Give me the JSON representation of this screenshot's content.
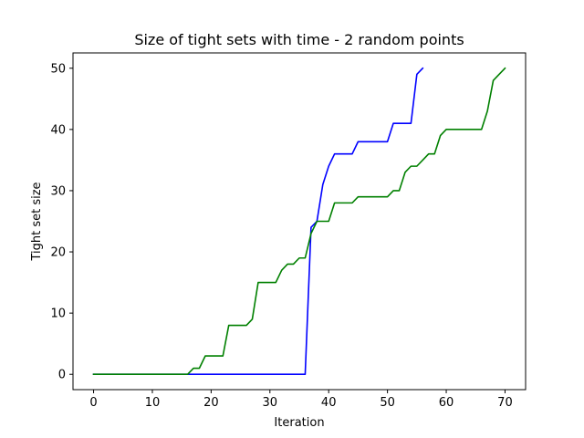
{
  "chart_data": {
    "type": "line",
    "title": "Size of tight sets with time - 2 random points",
    "xlabel": "Iteration",
    "ylabel": "Tight set size",
    "xlim": [
      -3.5,
      73.5
    ],
    "ylim": [
      -2.5,
      52.5
    ],
    "xticks": [
      0,
      10,
      20,
      30,
      40,
      50,
      60,
      70
    ],
    "yticks": [
      0,
      10,
      20,
      30,
      40,
      50
    ],
    "grid": false,
    "legend": "none",
    "series": [
      {
        "color": "#0000ff",
        "x": [
          0,
          1,
          2,
          3,
          4,
          5,
          6,
          7,
          8,
          9,
          10,
          11,
          12,
          13,
          14,
          15,
          16,
          17,
          18,
          19,
          20,
          21,
          22,
          23,
          24,
          25,
          26,
          27,
          28,
          29,
          30,
          31,
          32,
          33,
          34,
          35,
          36,
          37,
          38,
          39,
          40,
          41,
          42,
          43,
          44,
          45,
          46,
          47,
          48,
          49,
          50,
          51,
          52,
          53,
          54,
          55,
          56
        ],
        "y": [
          0,
          0,
          0,
          0,
          0,
          0,
          0,
          0,
          0,
          0,
          0,
          0,
          0,
          0,
          0,
          0,
          0,
          0,
          0,
          0,
          0,
          0,
          0,
          0,
          0,
          0,
          0,
          0,
          0,
          0,
          0,
          0,
          0,
          0,
          0,
          0,
          0,
          24,
          25,
          31,
          34,
          36,
          36,
          36,
          36,
          38,
          38,
          38,
          38,
          38,
          38,
          41,
          41,
          41,
          41,
          49,
          50
        ]
      },
      {
        "color": "#008000",
        "x": [
          0,
          1,
          2,
          3,
          4,
          5,
          6,
          7,
          8,
          9,
          10,
          11,
          12,
          13,
          14,
          15,
          16,
          17,
          18,
          19,
          20,
          21,
          22,
          23,
          24,
          25,
          26,
          27,
          28,
          29,
          30,
          31,
          32,
          33,
          34,
          35,
          36,
          37,
          38,
          39,
          40,
          41,
          42,
          43,
          44,
          45,
          46,
          47,
          48,
          49,
          50,
          51,
          52,
          53,
          54,
          55,
          56,
          57,
          58,
          59,
          60,
          61,
          62,
          63,
          64,
          65,
          66,
          67,
          68,
          69,
          70
        ],
        "y": [
          0,
          0,
          0,
          0,
          0,
          0,
          0,
          0,
          0,
          0,
          0,
          0,
          0,
          0,
          0,
          0,
          0,
          1,
          1,
          3,
          3,
          3,
          3,
          8,
          8,
          8,
          8,
          9,
          15,
          15,
          15,
          15,
          17,
          18,
          18,
          19,
          19,
          23,
          25,
          25,
          25,
          28,
          28,
          28,
          28,
          29,
          29,
          29,
          29,
          29,
          29,
          30,
          30,
          33,
          34,
          34,
          35,
          36,
          36,
          39,
          40,
          40,
          40,
          40,
          40,
          40,
          40,
          43,
          48,
          49,
          50
        ]
      }
    ]
  }
}
